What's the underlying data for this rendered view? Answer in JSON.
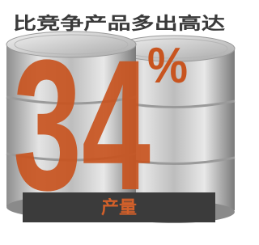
{
  "headline": "比竞争产品多出高达",
  "figure": "34",
  "unit": "%",
  "label": "产量"
}
